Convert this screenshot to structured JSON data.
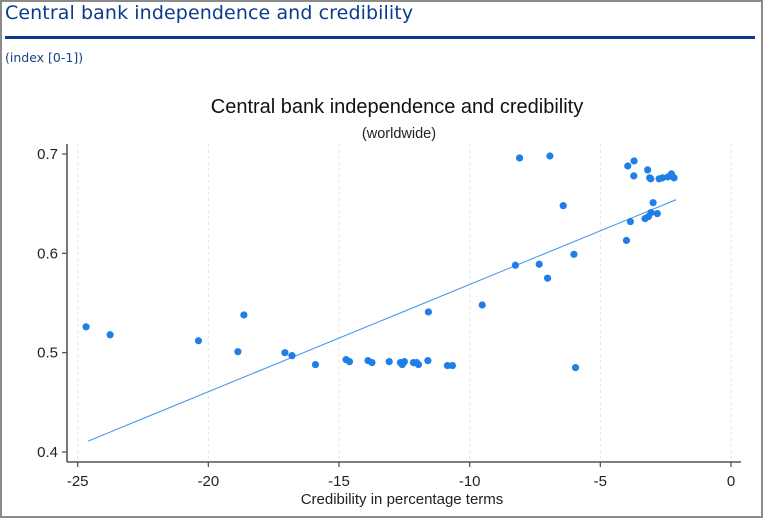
{
  "page": {
    "title": "Central bank independence and credibility",
    "subtitle": "(index [0-1])"
  },
  "colors": {
    "header_text": "#0b3c8c",
    "rule": "#0b3a8f",
    "points": "#1f7fe6",
    "fit_line": "#4a9ae8",
    "grid": "#e6e6e6",
    "axis": "#555555"
  },
  "chart_data": {
    "type": "scatter",
    "title": "Central bank independence and credibility",
    "subtitle": "(worldwide)",
    "xlabel": "Credibility in percentage terms",
    "ylabel": "",
    "xlim": [
      -25,
      0
    ],
    "ylim": [
      0.4,
      0.7
    ],
    "xticks": [
      -25,
      -20,
      -15,
      -10,
      -5,
      0
    ],
    "xtick_labels": [
      "-25",
      "-20",
      "-15",
      "-10",
      "-5",
      "0"
    ],
    "yticks": [
      0.4,
      0.5,
      0.6,
      0.7
    ],
    "ytick_labels": [
      "0.4",
      "0.5",
      "0.6",
      "0.7"
    ],
    "grid": "vertical dashed at x ticks",
    "legend": "none",
    "points": [
      {
        "x": -24.68,
        "y": 0.526
      },
      {
        "x": -23.76,
        "y": 0.518
      },
      {
        "x": -20.38,
        "y": 0.512
      },
      {
        "x": -18.64,
        "y": 0.538
      },
      {
        "x": -18.87,
        "y": 0.501
      },
      {
        "x": -17.07,
        "y": 0.5
      },
      {
        "x": -16.8,
        "y": 0.497
      },
      {
        "x": -15.9,
        "y": 0.488
      },
      {
        "x": -14.73,
        "y": 0.493
      },
      {
        "x": -14.6,
        "y": 0.491
      },
      {
        "x": -13.89,
        "y": 0.492
      },
      {
        "x": -13.74,
        "y": 0.49
      },
      {
        "x": -13.08,
        "y": 0.491
      },
      {
        "x": -12.65,
        "y": 0.49
      },
      {
        "x": -12.5,
        "y": 0.491
      },
      {
        "x": -12.58,
        "y": 0.488
      },
      {
        "x": -12.15,
        "y": 0.49
      },
      {
        "x": -11.96,
        "y": 0.488
      },
      {
        "x": -12.03,
        "y": 0.49
      },
      {
        "x": -11.6,
        "y": 0.492
      },
      {
        "x": -11.58,
        "y": 0.541
      },
      {
        "x": -10.85,
        "y": 0.487
      },
      {
        "x": -10.66,
        "y": 0.487
      },
      {
        "x": -9.52,
        "y": 0.548
      },
      {
        "x": -8.25,
        "y": 0.588
      },
      {
        "x": -8.09,
        "y": 0.696
      },
      {
        "x": -7.34,
        "y": 0.589
      },
      {
        "x": -7.02,
        "y": 0.575
      },
      {
        "x": -6.93,
        "y": 0.698
      },
      {
        "x": -6.42,
        "y": 0.648
      },
      {
        "x": -6.01,
        "y": 0.599
      },
      {
        "x": -5.95,
        "y": 0.485
      },
      {
        "x": -4.0,
        "y": 0.613
      },
      {
        "x": -3.95,
        "y": 0.688
      },
      {
        "x": -3.85,
        "y": 0.632
      },
      {
        "x": -3.71,
        "y": 0.693
      },
      {
        "x": -3.72,
        "y": 0.678
      },
      {
        "x": -3.29,
        "y": 0.635
      },
      {
        "x": -3.19,
        "y": 0.684
      },
      {
        "x": -3.16,
        "y": 0.637
      },
      {
        "x": -3.11,
        "y": 0.676
      },
      {
        "x": -3.07,
        "y": 0.675
      },
      {
        "x": -3.06,
        "y": 0.641
      },
      {
        "x": -2.98,
        "y": 0.651
      },
      {
        "x": -2.82,
        "y": 0.64
      },
      {
        "x": -2.75,
        "y": 0.675
      },
      {
        "x": -2.62,
        "y": 0.676
      },
      {
        "x": -2.41,
        "y": 0.677
      },
      {
        "x": -2.28,
        "y": 0.68
      },
      {
        "x": -2.18,
        "y": 0.676
      }
    ],
    "fit_line": {
      "x": [
        -24.6,
        -2.1
      ],
      "y": [
        0.411,
        0.654
      ]
    }
  }
}
